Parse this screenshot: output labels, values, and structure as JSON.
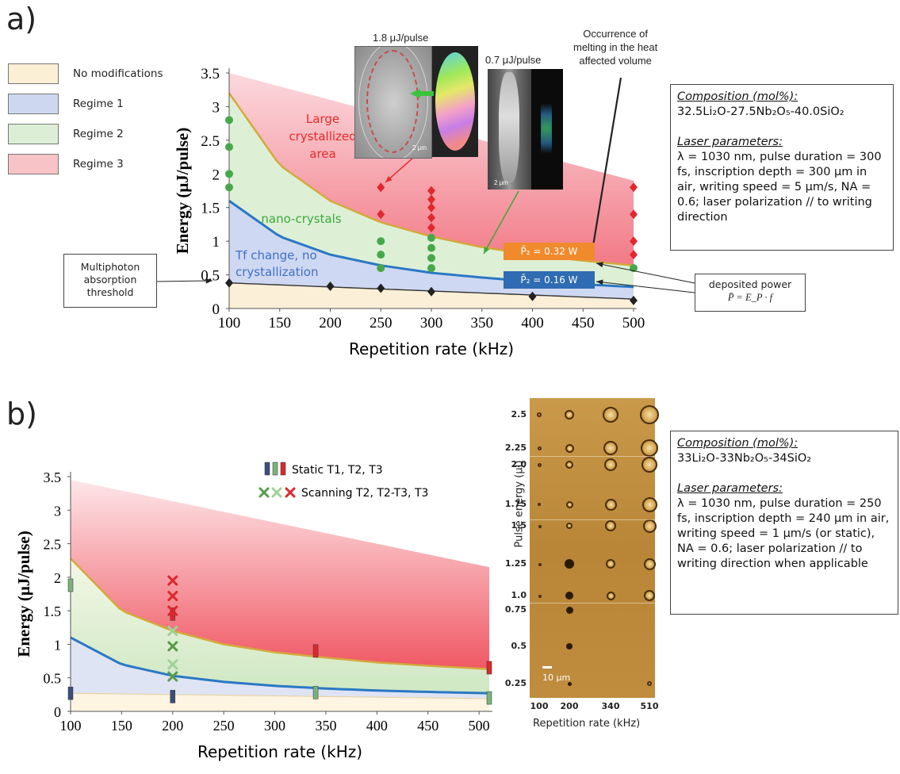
{
  "panel_a": {
    "label": "a)",
    "legend": [
      {
        "label": "No modifications",
        "color": "#fbefd6"
      },
      {
        "label": "Regime 1",
        "color": "#cdd7f0"
      },
      {
        "label": "Regime 2",
        "color": "#dcefd6"
      },
      {
        "label": "Regime 3",
        "color": "#f7c3c6"
      }
    ],
    "annotations": {
      "large_area": [
        "Large",
        "crystallized",
        "area"
      ],
      "nano": "nano-crystals",
      "tf_change": [
        "Tf change, no",
        "crystallization"
      ],
      "p032": "P̄₂ = 0.32 W",
      "p016": "P̄₂ = 0.16 W",
      "img1_title": "1.8 μJ/pulse",
      "img2_title": "0.7 μJ/pulse",
      "melting": [
        "Occurrence of",
        "melting in the heat",
        "affected volume"
      ],
      "multiphoton": [
        "Multiphoton",
        "absorption",
        "threshold"
      ],
      "deposited": [
        "deposited power",
        "P̄ = E_P · f"
      ],
      "scale1": "2 μm",
      "scale2": "2 μm"
    },
    "composition_title": "Composition (mol%):",
    "composition": "32.5Li₂O-27.5Nb₂O₅-40.0SiO₂",
    "laser_title": "Laser parameters:",
    "laser_text": "λ = 1030 nm, pulse duration = 300 fs, inscription depth = 300 μm in air, writing speed = 5 μm/s, NA = 0.6; laser polarization // to writing direction"
  },
  "panel_b": {
    "label": "b)",
    "legend_static": "Static T1, T2, T3",
    "legend_scanning": "Scanning T2, T2-T3, T3",
    "composition_title": "Composition (mol%):",
    "composition": "33Li₂O-33Nb₂O₅-34SiO₂",
    "laser_title": "Laser parameters:",
    "laser_text": "λ = 1030 nm, pulse duration = 250 fs, inscription depth = 240 μm in air, writing speed = 1 μm/s (or static), NA = 0.6; laser polarization // to writing direction when applicable",
    "micrograph": {
      "ylabel": "Pulse energy (μJ)",
      "xlabel": "Repetition rate (kHz)",
      "yticks": [
        "2.5",
        "2.25",
        "2.0",
        "1.75",
        "1.5",
        "1.25",
        "1.0",
        "0.75",
        "0.5",
        "0.25"
      ],
      "xticks": [
        "100",
        "200",
        "340",
        "510"
      ],
      "scalebar": "10 μm"
    }
  },
  "chart_data": [
    {
      "type": "scatter",
      "panel": "a",
      "xlabel": "Repetition rate (kHz)",
      "ylabel": "Energy (μJ/pulse)",
      "xlim": [
        100,
        500
      ],
      "ylim": [
        0,
        3.5
      ],
      "xticks": [
        100,
        150,
        200,
        250,
        300,
        350,
        400,
        450,
        500
      ],
      "yticks": [
        0,
        0.5,
        1,
        1.5,
        2,
        2.5,
        3,
        3.5
      ],
      "boundaries": {
        "threshold": {
          "x": [
            100,
            500
          ],
          "y": [
            0.38,
            0.14
          ],
          "color": "#333333"
        },
        "regime1_2": {
          "x": [
            100,
            150,
            200,
            250,
            300,
            350,
            400,
            450,
            500
          ],
          "y": [
            1.6,
            1.07,
            0.8,
            0.64,
            0.53,
            0.46,
            0.4,
            0.36,
            0.32
          ],
          "color": "#2a78c4"
        },
        "regime2_3": {
          "x": [
            100,
            150,
            200,
            250,
            300,
            350,
            400,
            450,
            500
          ],
          "y": [
            3.2,
            2.13,
            1.6,
            1.28,
            1.07,
            0.91,
            0.8,
            0.71,
            0.64
          ],
          "color": "#d4a93a"
        },
        "regime3_top": {
          "x": [
            100,
            500
          ],
          "y": [
            3.5,
            1.9
          ]
        }
      },
      "series": [
        {
          "name": "No modifications",
          "marker": "diamond",
          "color": "#222222",
          "points": [
            [
              100,
              0.38
            ],
            [
              200,
              0.33
            ],
            [
              250,
              0.3
            ],
            [
              300,
              0.25
            ],
            [
              400,
              0.18
            ],
            [
              500,
              0.12
            ]
          ]
        },
        {
          "name": "Regime 2",
          "marker": "circle",
          "color": "#46a84a",
          "points": [
            [
              100,
              1.8
            ],
            [
              100,
              2.0
            ],
            [
              100,
              2.4
            ],
            [
              100,
              2.8
            ],
            [
              250,
              0.6
            ],
            [
              250,
              0.8
            ],
            [
              250,
              1.0
            ],
            [
              300,
              0.6
            ],
            [
              300,
              0.75
            ],
            [
              300,
              0.9
            ],
            [
              300,
              1.05
            ],
            [
              500,
              0.6
            ]
          ]
        },
        {
          "name": "Regime 3",
          "marker": "diamond",
          "color": "#e0282e",
          "points": [
            [
              250,
              1.4
            ],
            [
              250,
              1.8
            ],
            [
              300,
              1.2
            ],
            [
              300,
              1.35
            ],
            [
              300,
              1.5
            ],
            [
              300,
              1.62
            ],
            [
              300,
              1.75
            ],
            [
              500,
              0.8
            ],
            [
              500,
              1.0
            ],
            [
              500,
              1.4
            ],
            [
              500,
              1.8
            ]
          ]
        }
      ]
    },
    {
      "type": "scatter",
      "panel": "b",
      "xlabel": "Repetition rate (kHz)",
      "ylabel": "Energy (μJ/pulse)",
      "xlim": [
        100,
        510
      ],
      "ylim": [
        0,
        3.5
      ],
      "xticks": [
        100,
        150,
        200,
        250,
        300,
        350,
        400,
        450,
        500
      ],
      "yticks": [
        0,
        0.5,
        1,
        1.5,
        2,
        2.5,
        3,
        3.5
      ],
      "boundaries": {
        "threshold": {
          "x": [
            100,
            510
          ],
          "y": [
            0.27,
            0.19
          ],
          "color": "#e6d3a8"
        },
        "regime1_2": {
          "x": [
            100,
            150,
            200,
            250,
            300,
            350,
            400,
            450,
            510
          ],
          "y": [
            1.1,
            0.7,
            0.53,
            0.44,
            0.38,
            0.34,
            0.31,
            0.29,
            0.27
          ],
          "color": "#2a78c4"
        },
        "regime2_3": {
          "x": [
            100,
            150,
            200,
            250,
            300,
            350,
            400,
            450,
            510
          ],
          "y": [
            2.28,
            1.5,
            1.2,
            1.0,
            0.88,
            0.8,
            0.73,
            0.68,
            0.63
          ],
          "color": "#d4a93a"
        },
        "regime3_top": {
          "x": [
            100,
            510
          ],
          "y": [
            3.45,
            2.15
          ]
        }
      },
      "series": [
        {
          "name": "Static T1",
          "marker": "bar",
          "color": "#3b4d7a",
          "points": [
            [
              100,
              0.27
            ],
            [
              200,
              0.22
            ]
          ]
        },
        {
          "name": "Static T2",
          "marker": "bar",
          "color": "#7ab37a",
          "points": [
            [
              100,
              1.88
            ],
            [
              340,
              0.28
            ],
            [
              510,
              0.2
            ]
          ]
        },
        {
          "name": "Static T3",
          "marker": "bar",
          "color": "#d9282e",
          "points": [
            [
              200,
              1.45
            ],
            [
              340,
              0.9
            ],
            [
              510,
              0.65
            ]
          ]
        },
        {
          "name": "Scanning T2",
          "marker": "x",
          "color": "#5a9a4a",
          "points": [
            [
              200,
              0.52
            ],
            [
              200,
              0.97
            ]
          ]
        },
        {
          "name": "Scanning T2-T3",
          "marker": "x",
          "color": "#9fd19a",
          "points": [
            [
              200,
              0.7
            ],
            [
              200,
              1.2
            ]
          ]
        },
        {
          "name": "Scanning T3",
          "marker": "x",
          "color": "#d9282e",
          "points": [
            [
              200,
              1.5
            ],
            [
              200,
              1.72
            ],
            [
              200,
              1.95
            ]
          ]
        }
      ]
    }
  ]
}
